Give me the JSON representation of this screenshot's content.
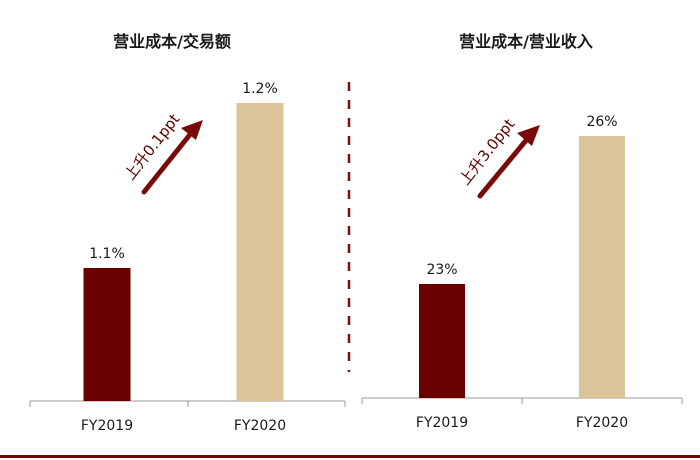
{
  "colors": {
    "fy2019": "#6b0000",
    "fy2020": "#dcc49a",
    "arrow": "#7a0a0a",
    "divider": "#7a1010",
    "axis": "#999999",
    "bottom_rule": "#7a0000"
  },
  "chart_data": [
    {
      "type": "bar",
      "title": "营业成本/交易额",
      "categories": [
        "FY2019",
        "FY2020"
      ],
      "values": [
        1.1,
        1.2
      ],
      "data_labels": [
        "1.1%",
        "1.2%"
      ],
      "unit": "%",
      "annotation": "上升0.1ppt",
      "grid": false
    },
    {
      "type": "bar",
      "title": "营业成本/营业收入",
      "categories": [
        "FY2019",
        "FY2020"
      ],
      "values": [
        23,
        26
      ],
      "data_labels": [
        "23%",
        "26%"
      ],
      "unit": "%",
      "annotation": "上升3.0ppt",
      "grid": false
    }
  ]
}
